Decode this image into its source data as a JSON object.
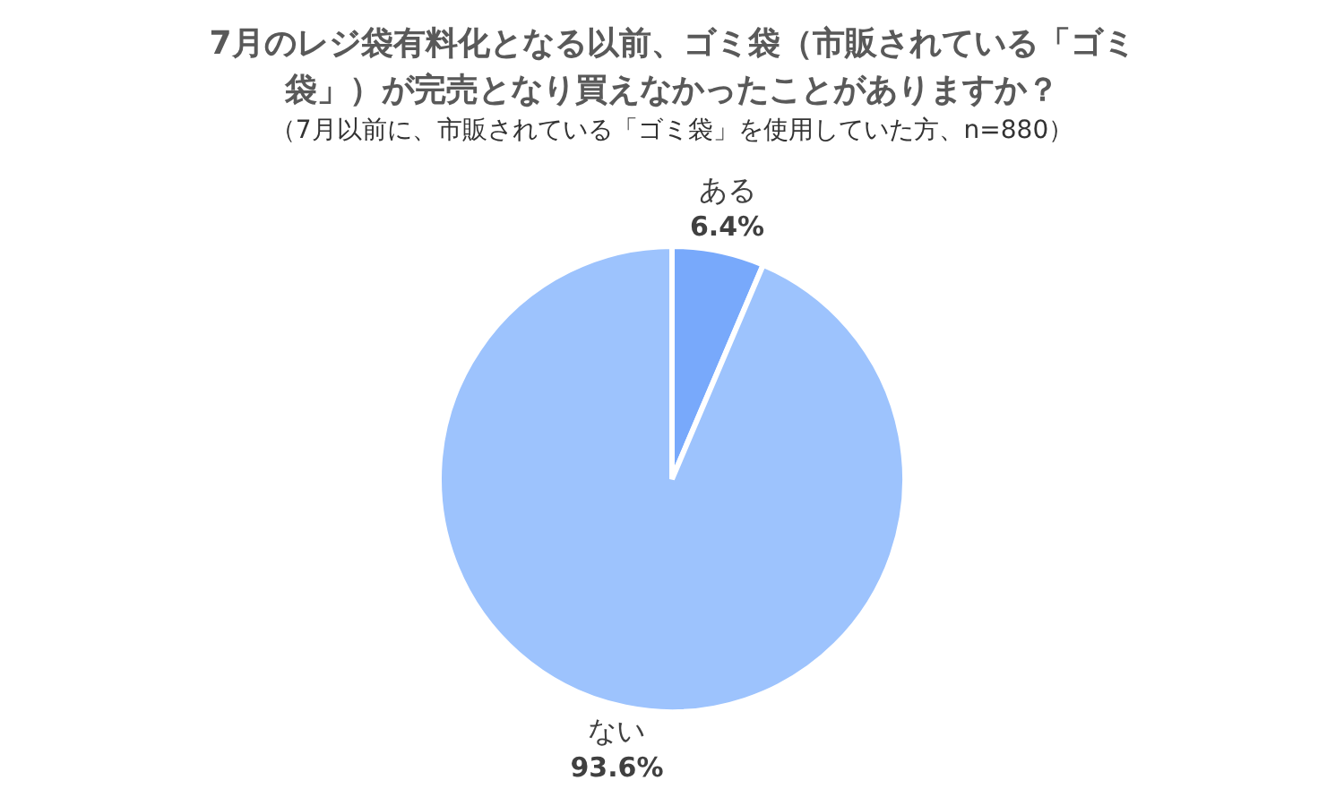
{
  "chart_data": {
    "type": "pie",
    "title": "7月のレジ袋有料化となる以前、ゴミ袋（市販されている「ゴミ袋」）が完売となり買えなかったことがありますか？",
    "subtitle": "（7月以前に、市販されている「ゴミ袋」を使用していた方、n=880）",
    "categories": [
      "ある",
      "ない"
    ],
    "values": [
      6.4,
      93.6
    ],
    "colors": [
      "#78a9fb",
      "#9dc3fd"
    ],
    "value_labels": [
      "6.4%",
      "93.6%"
    ]
  }
}
